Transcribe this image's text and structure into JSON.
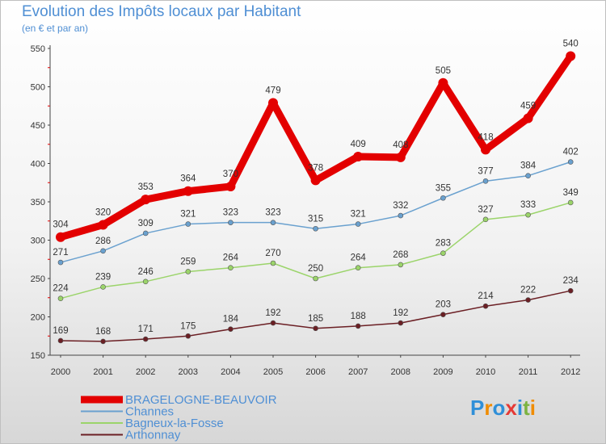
{
  "chart_data": {
    "type": "line",
    "title": "Evolution des Impôts locaux par Habitant",
    "subtitle": "(en € et par an)",
    "categories": [
      "2000",
      "2001",
      "2002",
      "2003",
      "2004",
      "2005",
      "2006",
      "2007",
      "2008",
      "2009",
      "2010",
      "2011",
      "2012"
    ],
    "ylim": [
      150,
      550
    ],
    "yticks": [
      "150",
      "200",
      "250",
      "300",
      "350",
      "400",
      "450",
      "500",
      "550"
    ],
    "series": [
      {
        "name": "BRAGELOGNE-BEAUVOIR",
        "color": "#e30000",
        "values": [
          304,
          320,
          353,
          364,
          370,
          479,
          378,
          409,
          408,
          505,
          418,
          459,
          540
        ],
        "labels": [
          "304",
          "320",
          "353",
          "364",
          "370",
          "479",
          "378",
          "409",
          "408",
          "505",
          "418",
          "459",
          "540"
        ]
      },
      {
        "name": "Channes",
        "color": "#6aa1cf",
        "values": [
          271,
          286,
          309,
          321,
          323,
          323,
          315,
          321,
          332,
          355,
          377,
          384,
          402
        ],
        "labels": [
          "271",
          "286",
          "309",
          "321",
          "323",
          "323",
          "315",
          "321",
          "332",
          "355",
          "377",
          "384",
          "402"
        ]
      },
      {
        "name": "Bagneux-la-Fosse",
        "color": "#9bd46a",
        "values": [
          224,
          239,
          246,
          259,
          264,
          270,
          250,
          264,
          268,
          283,
          327,
          333,
          349
        ],
        "labels": [
          "224",
          "239",
          "246",
          "259",
          "264",
          "270",
          "250",
          "264",
          "268",
          "283",
          "327",
          "333",
          "349"
        ]
      },
      {
        "name": "Arthonnay",
        "color": "#6b1f24",
        "values": [
          169,
          168,
          171,
          175,
          184,
          192,
          185,
          188,
          192,
          203,
          214,
          222,
          234
        ],
        "labels": [
          "169",
          "168",
          "171",
          "175",
          "184",
          "192",
          "185",
          "188",
          "192",
          "203",
          "214",
          "222",
          "234"
        ]
      }
    ],
    "legend_position": "bottom-left"
  },
  "logo": {
    "text": "Proxiti",
    "letters": [
      "P",
      "r",
      "o",
      "x",
      "i",
      "t",
      "i"
    ],
    "colors": [
      "#2f8fd8",
      "#f08c00",
      "#2f8fd8",
      "#e53935",
      "#2f8fd8",
      "#7cb342",
      "#f08c00"
    ]
  }
}
